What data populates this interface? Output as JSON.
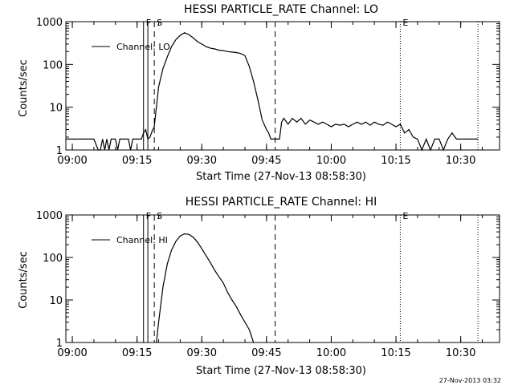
{
  "chart_data": [
    {
      "type": "line",
      "title": "HESSI PARTICLE_RATE Channel: LO",
      "xlabel": "Start Time (27-Nov-13 08:58:30)",
      "ylabel": "Counts/sec",
      "yscale": "log",
      "ylim": [
        1,
        1000
      ],
      "xlim": [
        "08:58:30",
        "10:39:00"
      ],
      "xticks": [
        "09:00",
        "09:15",
        "09:30",
        "09:45",
        "10:00",
        "10:15",
        "10:30"
      ],
      "yticks": [
        "1",
        "10",
        "100",
        "1000"
      ],
      "legend": {
        "label": "Channel: LO",
        "position": "top-left"
      },
      "event_markers": [
        {
          "label": "F",
          "time": "09:16:30",
          "style": "solid"
        },
        {
          "label": "",
          "time": "09:17:30",
          "style": "solid"
        },
        {
          "label": "S",
          "time": "09:19:00",
          "style": "dashed"
        },
        {
          "label": "",
          "time": "09:47:00",
          "style": "dashed"
        },
        {
          "label": "E",
          "time": "10:16:00",
          "style": "dotted"
        },
        {
          "label": "",
          "time": "10:34:00",
          "style": "dotted"
        }
      ],
      "series": [
        {
          "name": "Channel: LO",
          "x": [
            "08:58:30",
            "09:05:00",
            "09:06:00",
            "09:06:30",
            "09:07:00",
            "09:07:30",
            "09:08:00",
            "09:08:30",
            "09:09:00",
            "09:10:00",
            "09:10:30",
            "09:11:00",
            "09:11:30",
            "09:12:00",
            "09:13:00",
            "09:13:30",
            "09:14:00",
            "09:15:00",
            "09:16:00",
            "09:16:30",
            "09:17:00",
            "09:17:30",
            "09:18:00",
            "09:18:30",
            "09:19:00",
            "09:20:00",
            "09:21:00",
            "09:22:00",
            "09:23:00",
            "09:24:00",
            "09:25:00",
            "09:26:00",
            "09:27:00",
            "09:28:00",
            "09:29:00",
            "09:30:00",
            "09:31:00",
            "09:32:00",
            "09:33:00",
            "09:34:00",
            "09:35:00",
            "09:36:00",
            "09:37:00",
            "09:38:00",
            "09:39:00",
            "09:40:00",
            "09:41:00",
            "09:42:00",
            "09:43:00",
            "09:44:00",
            "09:45:00",
            "09:45:30",
            "09:46:00",
            "09:46:30",
            "09:47:00",
            "09:48:00",
            "09:48:30",
            "09:49:00",
            "09:50:00",
            "09:51:00",
            "09:52:00",
            "09:53:00",
            "09:54:00",
            "09:55:00",
            "09:56:00",
            "09:57:00",
            "09:58:00",
            "09:59:00",
            "10:00:00",
            "10:01:00",
            "10:02:00",
            "10:03:00",
            "10:04:00",
            "10:05:00",
            "10:06:00",
            "10:07:00",
            "10:08:00",
            "10:09:00",
            "10:10:00",
            "10:11:00",
            "10:12:00",
            "10:13:00",
            "10:14:00",
            "10:15:00",
            "10:16:00",
            "10:17:00",
            "10:18:00",
            "10:19:00",
            "10:20:00",
            "10:21:00",
            "10:22:00",
            "10:23:00",
            "10:24:00",
            "10:25:00",
            "10:26:00",
            "10:27:00",
            "10:28:00",
            "10:29:00",
            "10:30:00",
            "10:31:00",
            "10:32:00",
            "10:34:00"
          ],
          "y": [
            1.8,
            1.8,
            1,
            1,
            1.8,
            1,
            1.8,
            1,
            1.8,
            1.8,
            1,
            1.8,
            1.8,
            1.8,
            1.8,
            1,
            1.8,
            1.8,
            1.8,
            2.5,
            3,
            1.8,
            2,
            2.8,
            3.5,
            30,
            80,
            150,
            260,
            380,
            480,
            550,
            500,
            420,
            340,
            300,
            260,
            240,
            230,
            215,
            210,
            200,
            195,
            190,
            180,
            160,
            90,
            40,
            15,
            5,
            3,
            2.5,
            1.8,
            1.8,
            1.8,
            1.8,
            4.5,
            5.5,
            4,
            5.5,
            4.5,
            5.5,
            4,
            5,
            4.5,
            4,
            4.5,
            4,
            3.5,
            4,
            3.8,
            4,
            3.5,
            4,
            4.5,
            4,
            4.5,
            3.8,
            4.5,
            4,
            3.8,
            4.5,
            4,
            3.5,
            4,
            2.5,
            3,
            2,
            1.8,
            1,
            1.8,
            1,
            1.8,
            1.8,
            1,
            1.8,
            2.5,
            1.8,
            1.8,
            1.8,
            1.8,
            1.8
          ]
        }
      ]
    },
    {
      "type": "line",
      "title": "HESSI PARTICLE_RATE Channel: HI",
      "xlabel": "Start Time (27-Nov-13 08:58:30)",
      "ylabel": "Counts/sec",
      "yscale": "log",
      "ylim": [
        1,
        1000
      ],
      "xlim": [
        "08:58:30",
        "10:39:00"
      ],
      "xticks": [
        "09:00",
        "09:15",
        "09:30",
        "09:45",
        "10:00",
        "10:15",
        "10:30"
      ],
      "yticks": [
        "1",
        "10",
        "100",
        "1000"
      ],
      "legend": {
        "label": "Channel: HI",
        "position": "top-left"
      },
      "event_markers": [
        {
          "label": "F",
          "time": "09:16:30",
          "style": "solid"
        },
        {
          "label": "",
          "time": "09:17:30",
          "style": "solid"
        },
        {
          "label": "S",
          "time": "09:19:00",
          "style": "dashed"
        },
        {
          "label": "",
          "time": "09:47:00",
          "style": "dashed"
        },
        {
          "label": "E",
          "time": "10:16:00",
          "style": "dotted"
        },
        {
          "label": "",
          "time": "10:34:00",
          "style": "dotted"
        }
      ],
      "series": [
        {
          "name": "Channel: HI",
          "x": [
            "09:19:30",
            "09:20:00",
            "09:21:00",
            "09:22:00",
            "09:23:00",
            "09:24:00",
            "09:25:00",
            "09:26:00",
            "09:27:00",
            "09:28:00",
            "09:29:00",
            "09:30:00",
            "09:31:00",
            "09:32:00",
            "09:33:00",
            "09:34:00",
            "09:35:00",
            "09:36:00",
            "09:37:00",
            "09:38:00",
            "09:39:00",
            "09:40:00",
            "09:41:00",
            "09:42:00"
          ],
          "y": [
            1,
            3,
            20,
            70,
            150,
            240,
            320,
            360,
            350,
            300,
            230,
            160,
            110,
            75,
            50,
            35,
            25,
            15,
            10,
            7,
            4.5,
            3,
            2,
            1
          ]
        }
      ]
    }
  ],
  "stamp": "27-Nov-2013 03:32",
  "colors": {
    "line": "#000000",
    "background": "#ffffff"
  }
}
